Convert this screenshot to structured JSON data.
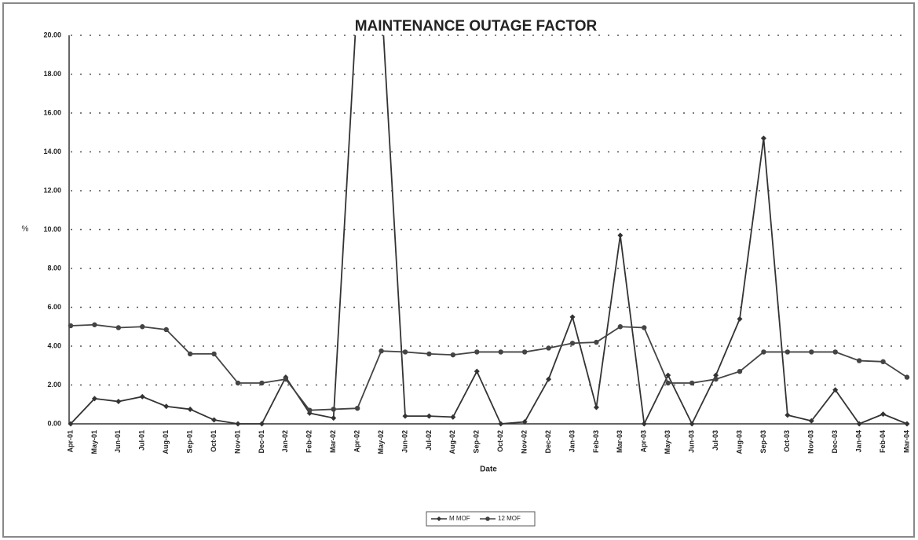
{
  "chart_data": {
    "type": "line",
    "title": "MAINTENANCE OUTAGE FACTOR",
    "x_label": "Date",
    "y_label": "%",
    "categories": [
      "Apr-01",
      "May-01",
      "Jun-01",
      "Jul-01",
      "Aug-01",
      "Sep-01",
      "Oct-01",
      "Nov-01",
      "Dec-01",
      "Jan-02",
      "Feb-02",
      "Mar-02",
      "Apr-02",
      "May-02",
      "Jun-02",
      "Jul-02",
      "Aug-02",
      "Sep-02",
      "Oct-02",
      "Nov-02",
      "Dec-02",
      "Jan-03",
      "Feb-03",
      "Mar-03",
      "Apr-03",
      "May-03",
      "Jun-03",
      "Jul-03",
      "Aug-03",
      "Sep-03",
      "Oct-03",
      "Nov-03",
      "Dec-03",
      "Jan-04",
      "Feb-04",
      "Mar-04"
    ],
    "series": [
      {
        "name": "M MOF",
        "color": "#333333",
        "marker": "diamond",
        "values": [
          0,
          1.3,
          1.15,
          1.4,
          0.9,
          0.75,
          0.2,
          0,
          0,
          2.4,
          0.55,
          0.3,
          22,
          22,
          0.4,
          0.4,
          0.35,
          2.7,
          0,
          0.1,
          2.3,
          5.5,
          0.85,
          9.7,
          0,
          2.5,
          0,
          2.5,
          5.4,
          14.7,
          0.45,
          0.15,
          1.75,
          0,
          0.5,
          0
        ]
      },
      {
        "name": "12 MOF",
        "color": "#444444",
        "marker": "circle",
        "values": [
          5.05,
          5.1,
          4.95,
          5.0,
          4.85,
          3.6,
          3.6,
          2.1,
          2.1,
          2.3,
          0.7,
          0.75,
          0.8,
          3.75,
          3.7,
          3.6,
          3.55,
          3.7,
          3.7,
          3.7,
          3.9,
          4.15,
          4.2,
          5.0,
          4.95,
          2.1,
          2.1,
          2.3,
          2.7,
          3.7,
          3.7,
          3.7,
          3.7,
          3.25,
          3.2,
          2.4
        ]
      }
    ],
    "ylim": [
      0,
      20
    ],
    "yticks": [
      {
        "value": 0,
        "label": "0.00"
      },
      {
        "value": 2,
        "label": "2.00"
      },
      {
        "value": 4,
        "label": "4.00"
      },
      {
        "value": 6,
        "label": "6.00"
      },
      {
        "value": 8,
        "label": "8.00"
      },
      {
        "value": 10,
        "label": "10.00"
      },
      {
        "value": 12,
        "label": "12.00"
      },
      {
        "value": 14,
        "label": "14.00"
      },
      {
        "value": 16,
        "label": "16.00"
      },
      {
        "value": 18,
        "label": "18.00"
      },
      {
        "value": 20,
        "label": "20.00"
      }
    ],
    "grid": true,
    "legend": "bottom"
  }
}
